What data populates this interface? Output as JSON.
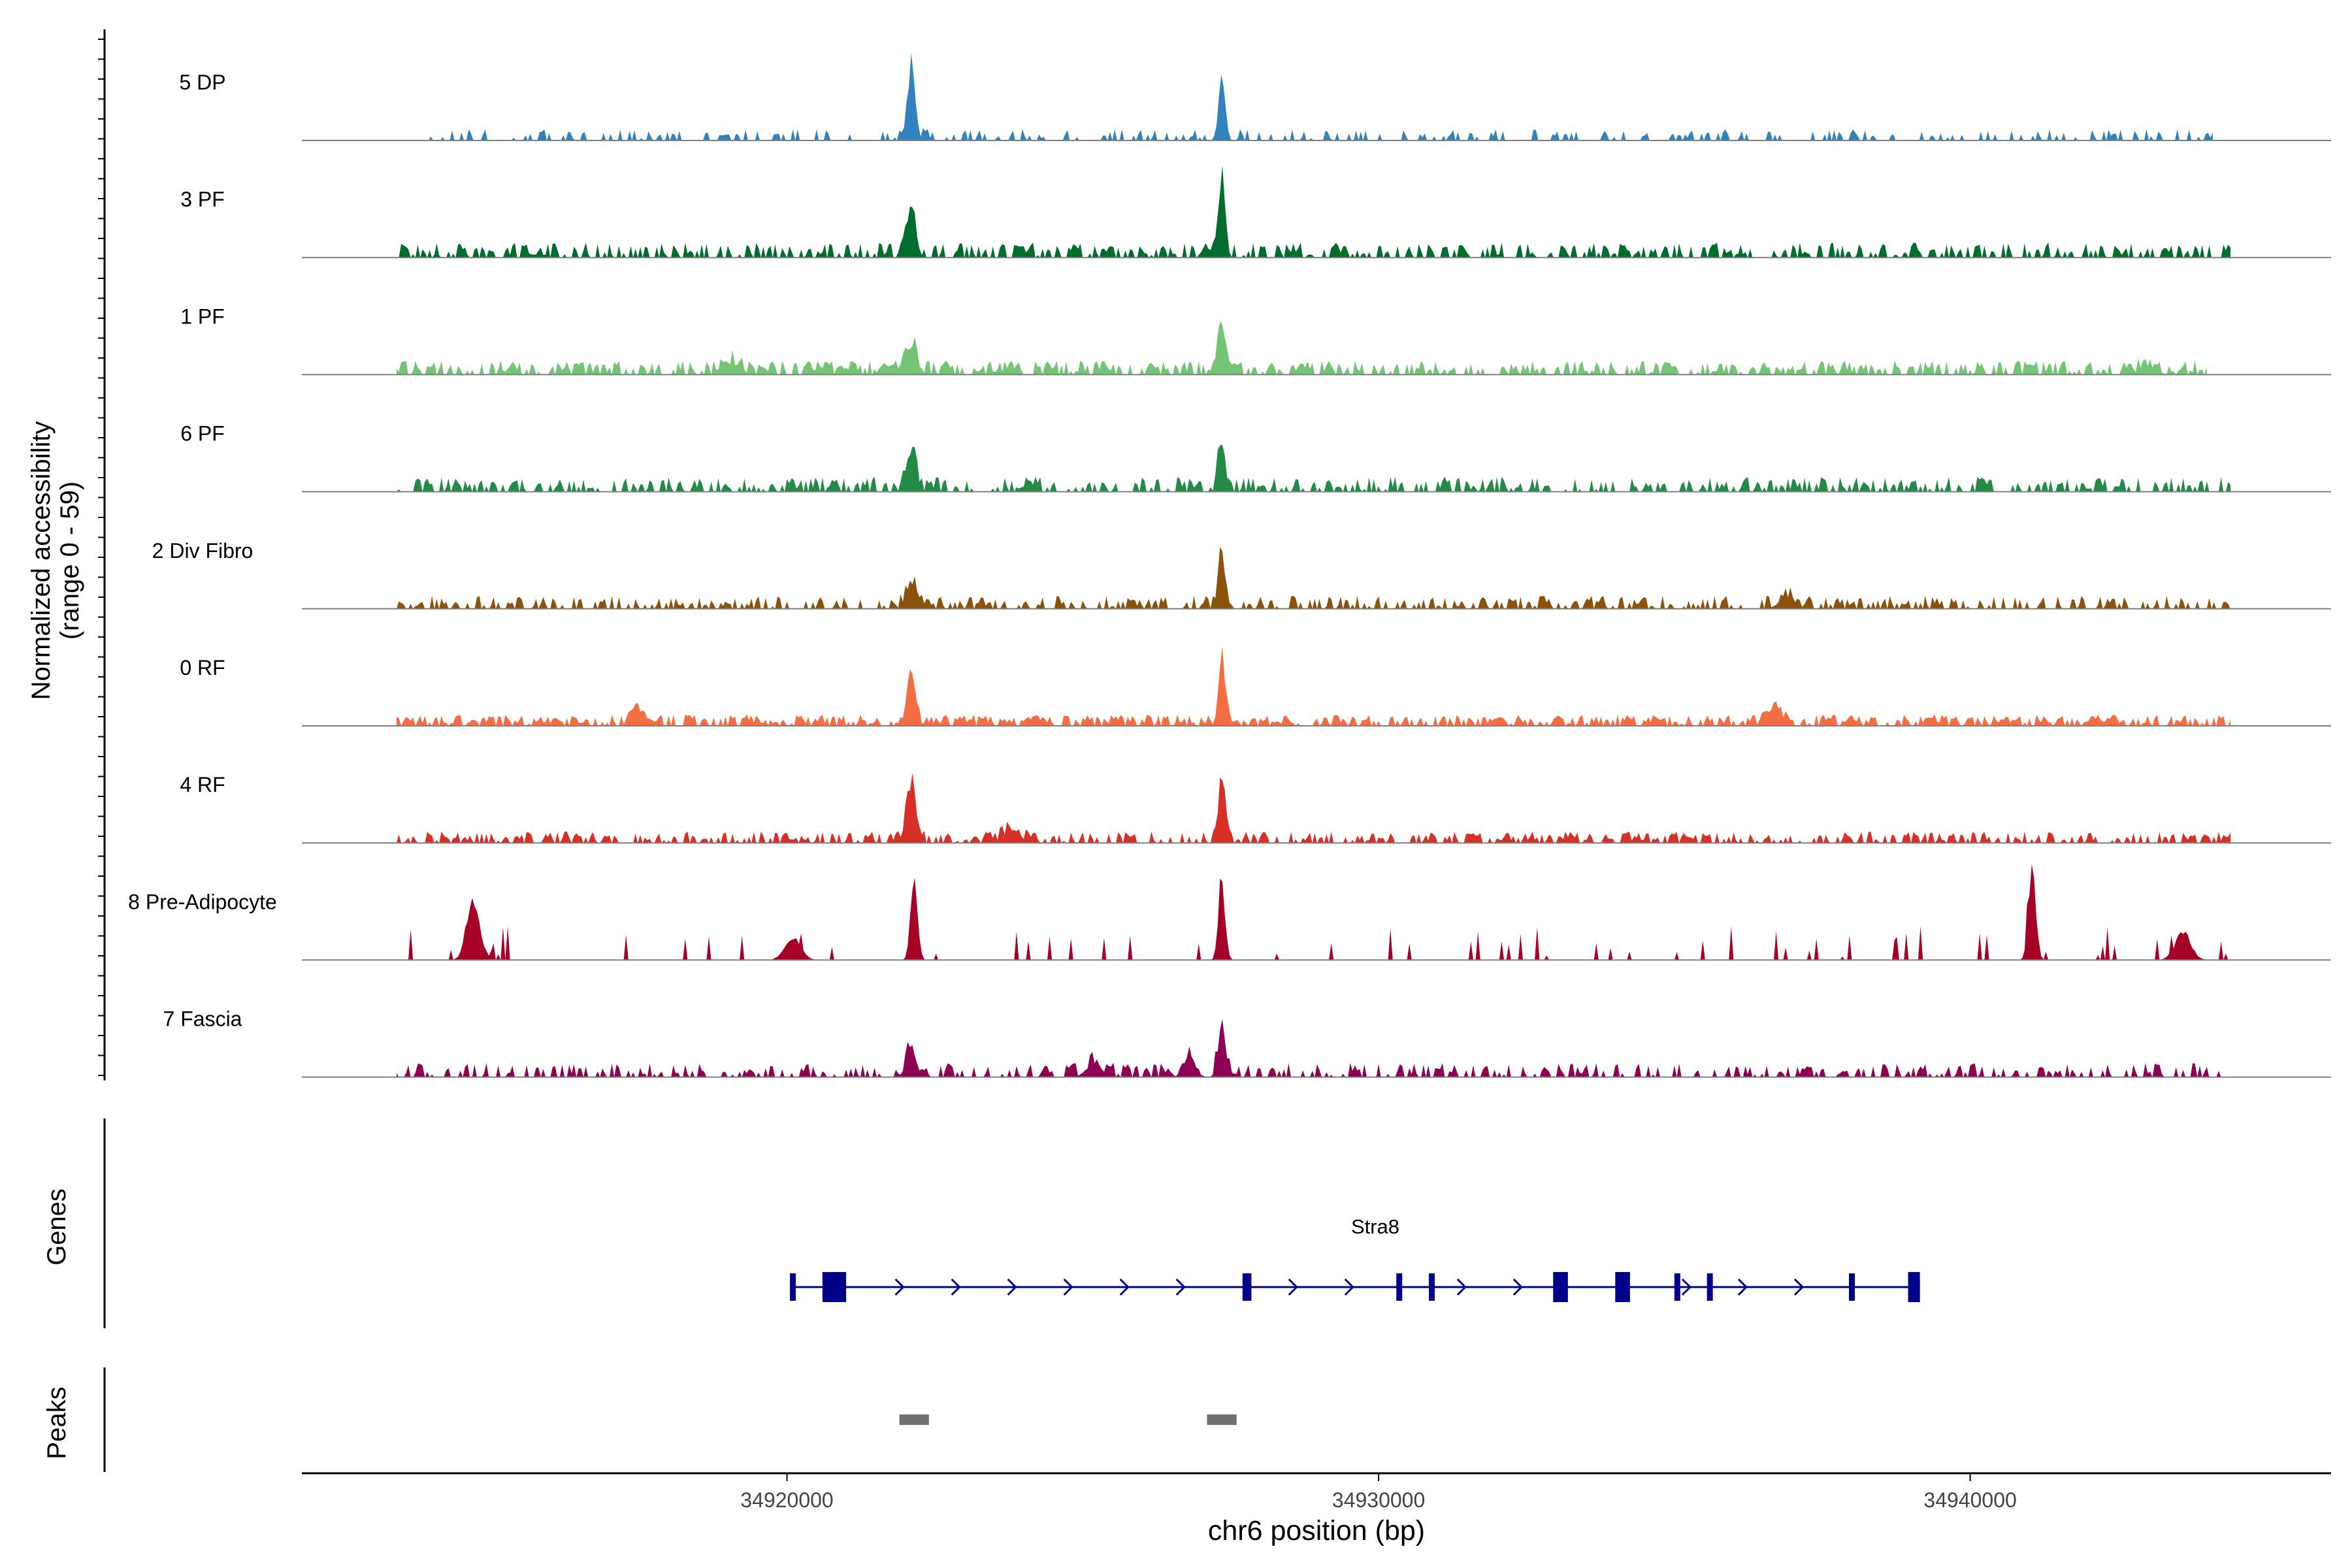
{
  "chart_data": {
    "type": "area",
    "title": "",
    "ylabel": "Normalized accessibility",
    "ylabel_range": "(range 0 - 59)",
    "ylim": [
      0,
      59
    ],
    "xlabel": "chr6 position (bp)",
    "xlim": [
      34911800,
      34946100
    ],
    "xticks": [
      34920000,
      34930000,
      34940000
    ],
    "xtick_labels": [
      "34920000",
      "34930000",
      "34940000"
    ],
    "tracks": [
      {
        "label": "5 DP",
        "color": "#3182bd",
        "seed": 11,
        "range": [
          34913900,
          34944100
        ],
        "density": 0.35,
        "noise": 0.1,
        "peaks": [
          [
            34922100,
            45,
            0.85
          ],
          [
            34927350,
            42,
            0.95
          ]
        ]
      },
      {
        "label": "3 PF",
        "color": "#006d2c",
        "seed": 23,
        "range": [
          34913400,
          34944400
        ],
        "density": 0.55,
        "noise": 0.14,
        "peaks": [
          [
            34922100,
            30,
            0.8
          ],
          [
            34927350,
            46,
            0.95
          ]
        ]
      },
      {
        "label": "1 PF",
        "color": "#74c476",
        "seed": 37,
        "range": [
          34913400,
          34944000
        ],
        "density": 0.65,
        "noise": 0.13,
        "peaks": [
          [
            34922100,
            18,
            0.6
          ],
          [
            34927350,
            35,
            0.9
          ],
          [
            34919100,
            7,
            0.3
          ],
          [
            34943000,
            6,
            0.3
          ]
        ]
      },
      {
        "label": "6 PF",
        "color": "#238b45",
        "seed": 41,
        "range": [
          34913400,
          34944400
        ],
        "density": 0.55,
        "noise": 0.14,
        "peaks": [
          [
            34922100,
            26,
            0.75
          ],
          [
            34927350,
            36,
            0.95
          ]
        ]
      },
      {
        "label": "2 Div Fibro",
        "color": "#8c510a",
        "seed": 53,
        "range": [
          34913400,
          34944400
        ],
        "density": 0.5,
        "noise": 0.12,
        "peaks": [
          [
            34922100,
            18,
            0.7
          ],
          [
            34927350,
            32,
            0.9
          ],
          [
            34936900,
            7,
            0.3
          ]
        ]
      },
      {
        "label": "0 RF",
        "color": "#f46d43",
        "seed": 67,
        "range": [
          34913400,
          34944400
        ],
        "density": 0.7,
        "noise": 0.1,
        "peaks": [
          [
            34922100,
            28,
            0.8
          ],
          [
            34927350,
            45,
            0.95
          ],
          [
            34917500,
            8,
            0.4
          ],
          [
            34936700,
            9,
            0.3
          ]
        ]
      },
      {
        "label": "4 RF",
        "color": "#d73027",
        "seed": 79,
        "range": [
          34913400,
          34944400
        ],
        "density": 0.55,
        "noise": 0.1,
        "peaks": [
          [
            34922100,
            41,
            0.8
          ],
          [
            34927350,
            45,
            0.95
          ],
          [
            34923800,
            9,
            0.3
          ]
        ]
      },
      {
        "label": "8 Pre-Adipocyte",
        "color": "#a50026",
        "seed": 83,
        "range": [
          34913400,
          34944400
        ],
        "density": 0.07,
        "noise": 0.35,
        "peaks": [
          [
            34914700,
            40,
            0.5
          ],
          [
            34922150,
            58,
            0.95
          ],
          [
            34927350,
            52,
            0.95
          ],
          [
            34941050,
            54,
            0.9
          ],
          [
            34920100,
            15,
            0.3
          ],
          [
            34943600,
            17,
            0.3
          ]
        ]
      },
      {
        "label": "7 Fascia",
        "color": "#8e0152",
        "seed": 97,
        "range": [
          34913400,
          34944400
        ],
        "density": 0.45,
        "noise": 0.13,
        "peaks": [
          [
            34922100,
            19,
            0.75
          ],
          [
            34927350,
            36,
            0.9
          ],
          [
            34926800,
            13,
            0.6
          ],
          [
            34925200,
            8,
            0.3
          ]
        ]
      }
    ],
    "genes": {
      "label": "Genes",
      "name": "Stra8",
      "color": "#00008b",
      "start": 34920050,
      "end": 34939150,
      "strand": "+",
      "exons": [
        [
          34920050,
          34920100
        ],
        [
          34920600,
          34921000
        ],
        [
          34927700,
          34927850
        ],
        [
          34930300,
          34930350
        ],
        [
          34930850,
          34930900
        ],
        [
          34932950,
          34933200
        ],
        [
          34934000,
          34934250
        ],
        [
          34935000,
          34935050
        ],
        [
          34935550,
          34935600
        ],
        [
          34937950,
          34938050
        ],
        [
          34938950,
          34939150
        ]
      ]
    },
    "peaks": {
      "label": "Peaks",
      "color": "#707070",
      "regions": [
        [
          34921900,
          34922400
        ],
        [
          34927100,
          34927600
        ]
      ]
    }
  }
}
